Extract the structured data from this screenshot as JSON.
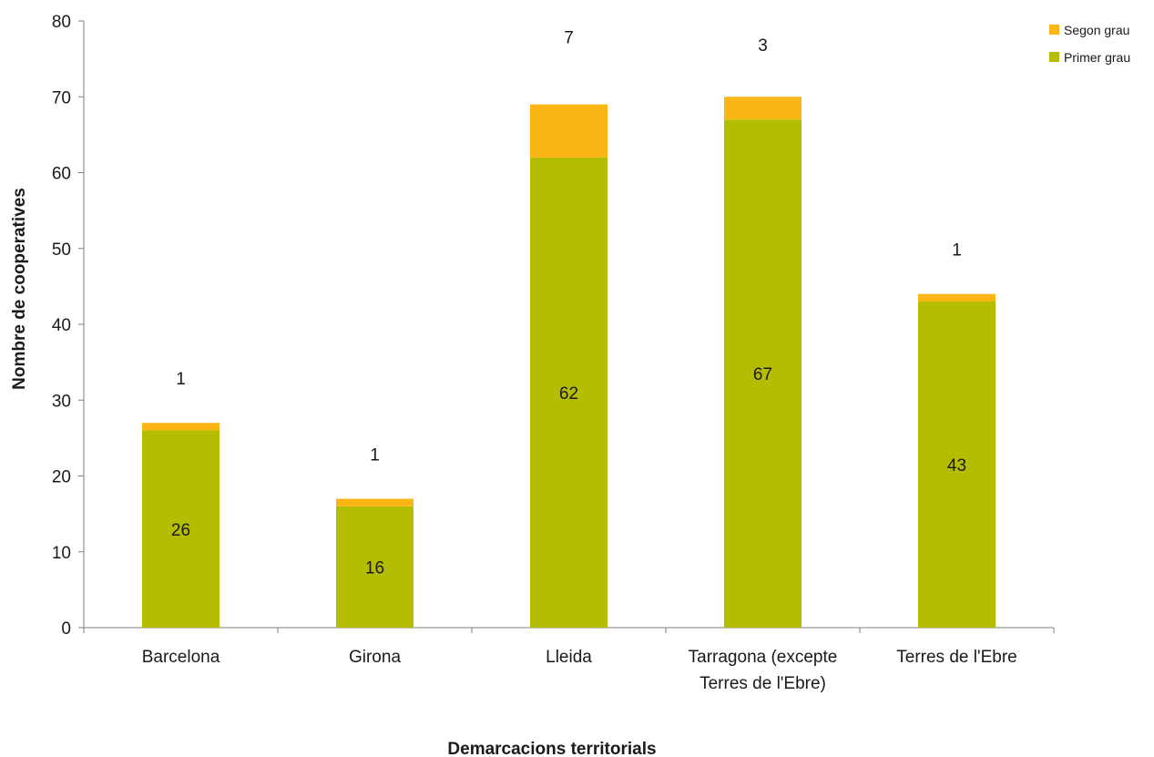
{
  "chart_data": {
    "type": "bar",
    "stacked": true,
    "categories": [
      [
        "Barcelona"
      ],
      [
        "Girona"
      ],
      [
        "Lleida"
      ],
      [
        "Tarragona (excepte",
        "Terres de l'Ebre)"
      ],
      [
        "Terres de l'Ebre"
      ]
    ],
    "series": [
      {
        "name": "Primer grau",
        "color": "#b5bd00",
        "values": [
          26,
          16,
          62,
          67,
          43
        ]
      },
      {
        "name": "Segon grau",
        "color": "#fbb616",
        "values": [
          1,
          1,
          7,
          3,
          1
        ]
      }
    ],
    "xlabel": "Demarcacions territorials",
    "ylabel": "Nombre de cooperatives",
    "ylim": [
      0,
      80
    ],
    "yticks": [
      0,
      10,
      20,
      30,
      40,
      50,
      60,
      70,
      80
    ],
    "grid": false,
    "legend_position": "top-right",
    "legend_order": [
      "Segon grau",
      "Primer grau"
    ]
  }
}
